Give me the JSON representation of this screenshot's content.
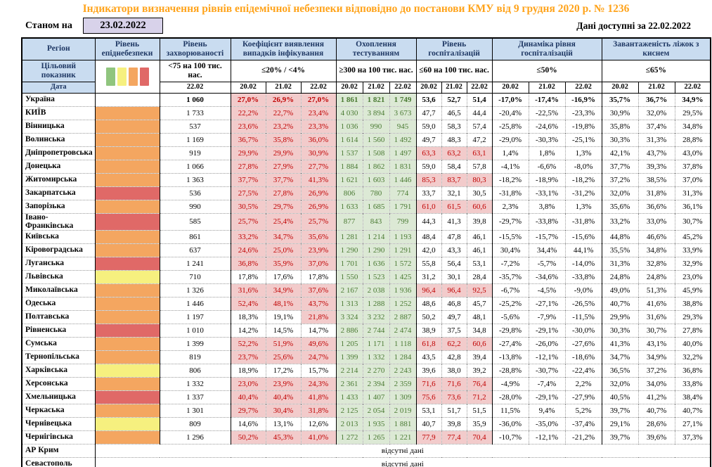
{
  "title": "Індикатори визначення рівнів епідемічної небезпеки відповідно до постанови КМУ від 9 грудня 2020 р. № 1236",
  "header": {
    "as_of_label": "Станом на",
    "as_of_date": "23.02.2022",
    "available_label": "Дані доступні за",
    "available_date": "22.02.2022"
  },
  "colors": {
    "title_orange": "#FFA31A",
    "header_bg": "#C9DCF0",
    "header_text": "#1F3864",
    "as_of_box_bg": "#D8D2EA",
    "pink_bg": "#F2CBCB",
    "pink_text": "#C00000",
    "green_bg": "#DCE9D5",
    "green_text": "#4A7A33",
    "levels": {
      "green": "#90C57E",
      "yellow": "#F6F07F",
      "orange": "#F4A660",
      "red": "#E06967"
    }
  },
  "table": {
    "group_headers": [
      "Регіон",
      "Рівень епіднебезпеки",
      "Рівень захворюваності",
      "Коефіцієнт виявлення випадків інфікування",
      "Охоплення тестуванням",
      "Рівень госпіталізацій",
      "Динаміка рівня госпіталізацій",
      "Завантаженість ліжок з киснем"
    ],
    "row_labels": {
      "target": "Цільовий показник",
      "date": "Дата"
    },
    "legend_colors": [
      "#90C57E",
      "#F6F07F",
      "#F4A660",
      "#E06967"
    ],
    "targets": {
      "incidence": "<75 на 100 тис. нас.",
      "detection": "≤20% / <4%",
      "testing": "≥300 на 100 тис. нас.",
      "hosp": "≤60 на 100 тис. нас.",
      "dynamics": "≤50%",
      "oxygen": "≤65%"
    },
    "dates": {
      "incidence": "22.02",
      "triple": [
        "20.02",
        "21.02",
        "22.02"
      ]
    },
    "no_data_text": "відсутні дані",
    "no_data_rows": [
      "АР Крим",
      "Севастополь"
    ],
    "rows": [
      {
        "name": "Україна",
        "level": null,
        "bold": true,
        "incidence": "1 060",
        "detection": [
          "27,0%",
          "26,9%",
          "27,0%"
        ],
        "testing": [
          "1 861",
          "1 821",
          "1 749"
        ],
        "hosp": [
          "53,6",
          "52,7",
          "51,4"
        ],
        "dynamics": [
          "-17,0%",
          "-17,4%",
          "-16,9%"
        ],
        "oxygen": [
          "35,7%",
          "36,7%",
          "34,9%"
        ]
      },
      {
        "name": "КИЇВ",
        "level": "orange",
        "incidence": "1 733",
        "detection": [
          "22,2%",
          "22,7%",
          "23,4%"
        ],
        "testing": [
          "4 030",
          "3 894",
          "3 673"
        ],
        "hosp": [
          "47,7",
          "46,5",
          "44,4"
        ],
        "dynamics": [
          "-20,4%",
          "-22,5%",
          "-23,3%"
        ],
        "oxygen": [
          "30,9%",
          "32,0%",
          "29,5%"
        ]
      },
      {
        "name": "Вінницька",
        "level": "orange",
        "incidence": "537",
        "detection": [
          "23,6%",
          "23,2%",
          "23,3%"
        ],
        "testing": [
          "1 036",
          "990",
          "945"
        ],
        "hosp": [
          "59,0",
          "58,3",
          "57,4"
        ],
        "dynamics": [
          "-25,8%",
          "-24,6%",
          "-19,8%"
        ],
        "oxygen": [
          "35,8%",
          "37,4%",
          "34,8%"
        ]
      },
      {
        "name": "Волинська",
        "level": "orange",
        "incidence": "1 169",
        "detection": [
          "36,7%",
          "35,8%",
          "36,0%"
        ],
        "testing": [
          "1 614",
          "1 560",
          "1 492"
        ],
        "hosp": [
          "49,7",
          "48,3",
          "47,2"
        ],
        "dynamics": [
          "-29,0%",
          "-30,3%",
          "-25,1%"
        ],
        "oxygen": [
          "30,3%",
          "31,3%",
          "28,8%"
        ]
      },
      {
        "name": "Дніпропетровська",
        "level": "orange",
        "incidence": "919",
        "detection": [
          "29,9%",
          "29,9%",
          "30,9%"
        ],
        "testing": [
          "1 537",
          "1 508",
          "1 497"
        ],
        "hosp": [
          "63,3",
          "63,2",
          "63,1"
        ],
        "dynamics": [
          "1,4%",
          "1,8%",
          "1,3%"
        ],
        "oxygen": [
          "42,1%",
          "43,7%",
          "43,0%"
        ]
      },
      {
        "name": "Донецька",
        "level": "orange",
        "incidence": "1 066",
        "detection": [
          "27,8%",
          "27,9%",
          "27,7%"
        ],
        "testing": [
          "1 884",
          "1 862",
          "1 831"
        ],
        "hosp": [
          "59,0",
          "58,4",
          "57,8"
        ],
        "dynamics": [
          "-4,1%",
          "-6,6%",
          "-8,0%"
        ],
        "oxygen": [
          "37,7%",
          "39,3%",
          "37,8%"
        ]
      },
      {
        "name": "Житомирська",
        "level": "orange",
        "incidence": "1 363",
        "detection": [
          "37,7%",
          "37,7%",
          "41,3%"
        ],
        "testing": [
          "1 621",
          "1 603",
          "1 446"
        ],
        "hosp": [
          "85,3",
          "83,7",
          "80,3"
        ],
        "dynamics": [
          "-18,2%",
          "-18,9%",
          "-18,2%"
        ],
        "oxygen": [
          "37,2%",
          "38,5%",
          "37,0%"
        ]
      },
      {
        "name": "Закарпатська",
        "level": "red",
        "incidence": "536",
        "detection": [
          "27,5%",
          "27,8%",
          "26,9%"
        ],
        "testing": [
          "806",
          "780",
          "774"
        ],
        "hosp": [
          "33,7",
          "32,1",
          "30,5"
        ],
        "dynamics": [
          "-31,8%",
          "-33,1%",
          "-31,2%"
        ],
        "oxygen": [
          "32,0%",
          "31,8%",
          "31,3%"
        ]
      },
      {
        "name": "Запорізька",
        "level": "orange",
        "incidence": "990",
        "detection": [
          "30,5%",
          "29,7%",
          "26,9%"
        ],
        "testing": [
          "1 633",
          "1 685",
          "1 791"
        ],
        "hosp": [
          "61,0",
          "61,5",
          "60,6"
        ],
        "dynamics": [
          "2,3%",
          "3,8%",
          "1,3%"
        ],
        "oxygen": [
          "35,6%",
          "36,6%",
          "36,1%"
        ]
      },
      {
        "name": "Івано-Франківська",
        "level": "red",
        "incidence": "585",
        "detection": [
          "25,7%",
          "25,4%",
          "25,7%"
        ],
        "testing": [
          "877",
          "843",
          "799"
        ],
        "hosp": [
          "44,3",
          "41,3",
          "39,8"
        ],
        "dynamics": [
          "-29,7%",
          "-33,8%",
          "-31,8%"
        ],
        "oxygen": [
          "33,2%",
          "33,0%",
          "30,7%"
        ]
      },
      {
        "name": "Київська",
        "level": "orange",
        "incidence": "861",
        "detection": [
          "33,2%",
          "34,7%",
          "35,6%"
        ],
        "testing": [
          "1 281",
          "1 214",
          "1 193"
        ],
        "hosp": [
          "48,4",
          "47,8",
          "46,1"
        ],
        "dynamics": [
          "-15,5%",
          "-15,7%",
          "-15,6%"
        ],
        "oxygen": [
          "44,8%",
          "46,6%",
          "45,2%"
        ]
      },
      {
        "name": "Кіровоградська",
        "level": "orange",
        "incidence": "637",
        "detection": [
          "24,6%",
          "25,0%",
          "23,9%"
        ],
        "testing": [
          "1 290",
          "1 290",
          "1 291"
        ],
        "hosp": [
          "42,0",
          "43,3",
          "46,1"
        ],
        "dynamics": [
          "30,4%",
          "34,4%",
          "44,1%"
        ],
        "oxygen": [
          "35,5%",
          "34,8%",
          "33,9%"
        ]
      },
      {
        "name": "Луганська",
        "level": "red",
        "incidence": "1 241",
        "detection": [
          "36,8%",
          "35,9%",
          "37,0%"
        ],
        "testing": [
          "1 701",
          "1 636",
          "1 572"
        ],
        "hosp": [
          "55,8",
          "56,4",
          "53,1"
        ],
        "dynamics": [
          "-7,2%",
          "-5,7%",
          "-14,0%"
        ],
        "oxygen": [
          "31,3%",
          "32,8%",
          "32,9%"
        ]
      },
      {
        "name": "Львівська",
        "level": "yellow",
        "incidence": "710",
        "detection": [
          "17,8%",
          "17,6%",
          "17,8%"
        ],
        "testing": [
          "1 550",
          "1 523",
          "1 425"
        ],
        "hosp": [
          "31,2",
          "30,1",
          "28,4"
        ],
        "dynamics": [
          "-35,7%",
          "-34,6%",
          "-33,8%"
        ],
        "oxygen": [
          "24,8%",
          "24,8%",
          "23,0%"
        ]
      },
      {
        "name": "Миколаївська",
        "level": "orange",
        "incidence": "1 326",
        "detection": [
          "31,6%",
          "34,9%",
          "37,6%"
        ],
        "testing": [
          "2 167",
          "2 038",
          "1 936"
        ],
        "hosp": [
          "96,4",
          "96,4",
          "92,5"
        ],
        "dynamics": [
          "-6,7%",
          "-4,5%",
          "-9,0%"
        ],
        "oxygen": [
          "49,0%",
          "51,3%",
          "45,9%"
        ]
      },
      {
        "name": "Одеська",
        "level": "orange",
        "incidence": "1 446",
        "detection": [
          "52,4%",
          "48,1%",
          "43,7%"
        ],
        "testing": [
          "1 313",
          "1 288",
          "1 252"
        ],
        "hosp": [
          "48,6",
          "46,8",
          "45,7"
        ],
        "dynamics": [
          "-25,2%",
          "-27,1%",
          "-26,5%"
        ],
        "oxygen": [
          "40,7%",
          "41,6%",
          "38,8%"
        ]
      },
      {
        "name": "Полтавська",
        "level": "orange",
        "incidence": "1 197",
        "detection": [
          "18,3%",
          "19,1%",
          "21,8%"
        ],
        "testing": [
          "3 324",
          "3 232",
          "2 887"
        ],
        "hosp": [
          "50,2",
          "49,7",
          "48,1"
        ],
        "dynamics": [
          "-5,6%",
          "-7,9%",
          "-11,5%"
        ],
        "oxygen": [
          "29,9%",
          "31,6%",
          "29,3%"
        ]
      },
      {
        "name": "Рівненська",
        "level": "red",
        "incidence": "1 010",
        "detection": [
          "14,2%",
          "14,5%",
          "14,7%"
        ],
        "testing": [
          "2 886",
          "2 744",
          "2 474"
        ],
        "hosp": [
          "38,9",
          "37,5",
          "34,8"
        ],
        "dynamics": [
          "-29,8%",
          "-29,1%",
          "-30,0%"
        ],
        "oxygen": [
          "30,3%",
          "30,7%",
          "27,8%"
        ]
      },
      {
        "name": "Сумська",
        "level": "orange",
        "incidence": "1 399",
        "detection": [
          "52,2%",
          "51,9%",
          "49,6%"
        ],
        "testing": [
          "1 205",
          "1 171",
          "1 118"
        ],
        "hosp": [
          "61,8",
          "62,2",
          "60,6"
        ],
        "dynamics": [
          "-27,4%",
          "-26,0%",
          "-27,6%"
        ],
        "oxygen": [
          "41,3%",
          "43,1%",
          "40,0%"
        ]
      },
      {
        "name": "Тернопільська",
        "level": "orange",
        "incidence": "819",
        "detection": [
          "23,7%",
          "25,6%",
          "24,7%"
        ],
        "testing": [
          "1 399",
          "1 332",
          "1 284"
        ],
        "hosp": [
          "43,5",
          "42,8",
          "39,4"
        ],
        "dynamics": [
          "-13,8%",
          "-12,1%",
          "-18,6%"
        ],
        "oxygen": [
          "34,7%",
          "34,9%",
          "32,2%"
        ]
      },
      {
        "name": "Харківська",
        "level": "yellow",
        "incidence": "806",
        "detection": [
          "18,9%",
          "17,2%",
          "15,7%"
        ],
        "testing": [
          "2 214",
          "2 270",
          "2 243"
        ],
        "hosp": [
          "39,6",
          "38,0",
          "39,2"
        ],
        "dynamics": [
          "-28,8%",
          "-30,7%",
          "-22,4%"
        ],
        "oxygen": [
          "36,5%",
          "37,2%",
          "36,8%"
        ]
      },
      {
        "name": "Херсонська",
        "level": "orange",
        "incidence": "1 332",
        "detection": [
          "23,0%",
          "23,9%",
          "24,3%"
        ],
        "testing": [
          "2 361",
          "2 394",
          "2 359"
        ],
        "hosp": [
          "71,6",
          "71,6",
          "76,4"
        ],
        "dynamics": [
          "-4,9%",
          "-7,4%",
          "2,2%"
        ],
        "oxygen": [
          "32,0%",
          "34,0%",
          "33,8%"
        ]
      },
      {
        "name": "Хмельницька",
        "level": "red",
        "incidence": "1 337",
        "detection": [
          "40,4%",
          "40,4%",
          "41,8%"
        ],
        "testing": [
          "1 433",
          "1 407",
          "1 309"
        ],
        "hosp": [
          "75,6",
          "73,6",
          "71,2"
        ],
        "dynamics": [
          "-28,0%",
          "-29,1%",
          "-27,9%"
        ],
        "oxygen": [
          "40,5%",
          "41,2%",
          "38,4%"
        ]
      },
      {
        "name": "Черкаська",
        "level": "orange",
        "incidence": "1 301",
        "detection": [
          "29,7%",
          "30,4%",
          "31,8%"
        ],
        "testing": [
          "2 125",
          "2 054",
          "2 019"
        ],
        "hosp": [
          "53,1",
          "51,7",
          "51,5"
        ],
        "dynamics": [
          "11,5%",
          "9,4%",
          "5,2%"
        ],
        "oxygen": [
          "39,7%",
          "40,7%",
          "40,7%"
        ]
      },
      {
        "name": "Чернівецька",
        "level": "yellow",
        "incidence": "809",
        "detection": [
          "14,6%",
          "13,1%",
          "12,6%"
        ],
        "testing": [
          "2 013",
          "1 935",
          "1 881"
        ],
        "hosp": [
          "40,7",
          "39,8",
          "35,9"
        ],
        "dynamics": [
          "-36,0%",
          "-35,0%",
          "-37,4%"
        ],
        "oxygen": [
          "29,1%",
          "28,6%",
          "27,1%"
        ]
      },
      {
        "name": "Чернігівська",
        "level": "orange",
        "incidence": "1 296",
        "detection": [
          "50,2%",
          "45,3%",
          "41,0%"
        ],
        "testing": [
          "1 272",
          "1 265",
          "1 221"
        ],
        "hosp": [
          "77,9",
          "77,4",
          "70,4"
        ],
        "dynamics": [
          "-10,7%",
          "-12,1%",
          "-21,2%"
        ],
        "oxygen": [
          "39,7%",
          "39,6%",
          "37,3%"
        ]
      }
    ]
  }
}
